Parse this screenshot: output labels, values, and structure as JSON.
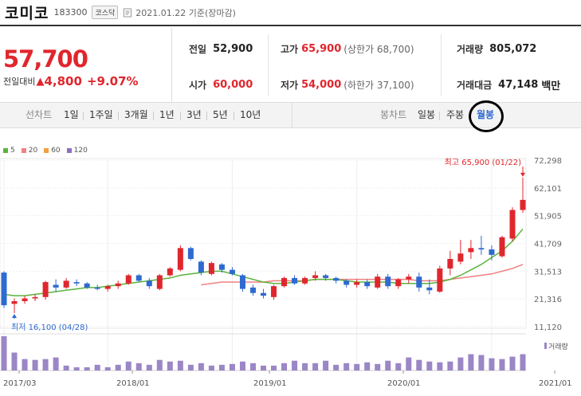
{
  "header": {
    "name": "코미코",
    "code": "183300",
    "market": "코스닥",
    "date": "2021.01.22 기준(장마감)"
  },
  "price": {
    "current": "57,700",
    "diff_label": "전일대비",
    "diff_arrow": "▲",
    "diff_value": "4,800",
    "diff_pct": "+9.07%"
  },
  "stats": {
    "prev_label": "전일",
    "prev_value": "52,900",
    "open_label": "시가",
    "open_value": "60,000",
    "high_label": "고가",
    "high_value": "65,900",
    "high_sub": "(상한가 68,700)",
    "low_label": "저가",
    "low_value": "54,000",
    "low_sub": "(하한가 37,100)",
    "volume_label": "거래량",
    "volume_value": "805,072",
    "amount_label": "거래대금",
    "amount_value": "47,148",
    "amount_unit": "백만"
  },
  "tabs": {
    "line_label": "선차트",
    "line_periods": [
      "1일",
      "1주일",
      "3개월",
      "1년",
      "3년",
      "5년",
      "10년"
    ],
    "candle_label": "봉차트",
    "candle_periods": [
      "일봉",
      "주봉",
      "월봉"
    ],
    "active": "월봉"
  },
  "colors": {
    "up": "#e0262d",
    "down": "#2e6ad0",
    "ma5": "#5ab43c",
    "ma20": "#f08080",
    "ma60": "#f0a040",
    "ma120": "#8e6fc0",
    "volume": "#9b86c6"
  },
  "chart_data": {
    "type": "candlestick",
    "legend": [
      "5",
      "20",
      "60",
      "120"
    ],
    "y_ticks": [
      "72,298",
      "62,101",
      "51,905",
      "41,709",
      "31,513",
      "21,316",
      "11,120"
    ],
    "ylim": [
      11120,
      72298
    ],
    "x_ticks": [
      "2017/03",
      "2018/01",
      "2019/01",
      "2020/01",
      "2021/01"
    ],
    "high_annotation": "최고 65,900 (01/22)",
    "low_annotation": "최저 16,100 (04/28)",
    "volume_label": "거래량",
    "candles": [
      {
        "o": 31000,
        "h": 31500,
        "l": 18000,
        "c": 19000
      },
      {
        "o": 19500,
        "h": 21500,
        "l": 16100,
        "c": 20500
      },
      {
        "o": 20500,
        "h": 22500,
        "l": 19500,
        "c": 21500
      },
      {
        "o": 21500,
        "h": 23000,
        "l": 20500,
        "c": 22000
      },
      {
        "o": 22000,
        "h": 28000,
        "l": 21000,
        "c": 27500
      },
      {
        "o": 26500,
        "h": 28500,
        "l": 24000,
        "c": 25500
      },
      {
        "o": 25500,
        "h": 29000,
        "l": 25000,
        "c": 28000
      },
      {
        "o": 27500,
        "h": 28500,
        "l": 26000,
        "c": 27000
      },
      {
        "o": 27000,
        "h": 27500,
        "l": 25000,
        "c": 25500
      },
      {
        "o": 25500,
        "h": 26500,
        "l": 24500,
        "c": 25000
      },
      {
        "o": 25000,
        "h": 26500,
        "l": 24000,
        "c": 26000
      },
      {
        "o": 26000,
        "h": 28000,
        "l": 25000,
        "c": 27000
      },
      {
        "o": 27000,
        "h": 30500,
        "l": 26500,
        "c": 30000
      },
      {
        "o": 30000,
        "h": 30500,
        "l": 27500,
        "c": 28000
      },
      {
        "o": 28000,
        "h": 29000,
        "l": 25000,
        "c": 26000
      },
      {
        "o": 25000,
        "h": 30500,
        "l": 24500,
        "c": 30000
      },
      {
        "o": 30000,
        "h": 33000,
        "l": 29500,
        "c": 32500
      },
      {
        "o": 32000,
        "h": 41000,
        "l": 31500,
        "c": 40000
      },
      {
        "o": 40000,
        "h": 40500,
        "l": 35500,
        "c": 36000
      },
      {
        "o": 35000,
        "h": 35500,
        "l": 30000,
        "c": 31000
      },
      {
        "o": 30500,
        "h": 35000,
        "l": 30000,
        "c": 34500
      },
      {
        "o": 34000,
        "h": 34500,
        "l": 31000,
        "c": 32000
      },
      {
        "o": 32000,
        "h": 33000,
        "l": 30000,
        "c": 30500
      },
      {
        "o": 30000,
        "h": 30500,
        "l": 24000,
        "c": 25000
      },
      {
        "o": 25500,
        "h": 26500,
        "l": 22500,
        "c": 23500
      },
      {
        "o": 23500,
        "h": 25000,
        "l": 21500,
        "c": 22500
      },
      {
        "o": 22000,
        "h": 26500,
        "l": 21000,
        "c": 26000
      },
      {
        "o": 26000,
        "h": 29500,
        "l": 25500,
        "c": 29000
      },
      {
        "o": 29000,
        "h": 30000,
        "l": 26500,
        "c": 27000
      },
      {
        "o": 27000,
        "h": 29500,
        "l": 26500,
        "c": 29000
      },
      {
        "o": 29000,
        "h": 31500,
        "l": 28000,
        "c": 30000
      },
      {
        "o": 30000,
        "h": 30500,
        "l": 28000,
        "c": 29000
      },
      {
        "o": 29000,
        "h": 29500,
        "l": 27000,
        "c": 28000
      },
      {
        "o": 28000,
        "h": 28500,
        "l": 25500,
        "c": 26500
      },
      {
        "o": 26500,
        "h": 28500,
        "l": 25500,
        "c": 27500
      },
      {
        "o": 27500,
        "h": 28500,
        "l": 25000,
        "c": 26000
      },
      {
        "o": 25500,
        "h": 30500,
        "l": 25000,
        "c": 29500
      },
      {
        "o": 29500,
        "h": 30500,
        "l": 25000,
        "c": 26000
      },
      {
        "o": 26000,
        "h": 29000,
        "l": 25000,
        "c": 28500
      },
      {
        "o": 28500,
        "h": 30500,
        "l": 27000,
        "c": 29500
      },
      {
        "o": 29500,
        "h": 31000,
        "l": 24000,
        "c": 25500
      },
      {
        "o": 25500,
        "h": 28500,
        "l": 23000,
        "c": 24500
      },
      {
        "o": 24000,
        "h": 33500,
        "l": 23500,
        "c": 32500
      },
      {
        "o": 32500,
        "h": 39000,
        "l": 30000,
        "c": 36000
      },
      {
        "o": 35000,
        "h": 43000,
        "l": 34000,
        "c": 38000
      },
      {
        "o": 38500,
        "h": 43000,
        "l": 36000,
        "c": 40000
      },
      {
        "o": 40000,
        "h": 44500,
        "l": 37500,
        "c": 39500
      },
      {
        "o": 39500,
        "h": 41000,
        "l": 35500,
        "c": 37500
      },
      {
        "o": 37000,
        "h": 44500,
        "l": 36500,
        "c": 44000
      },
      {
        "o": 43500,
        "h": 55000,
        "l": 42500,
        "c": 54000
      },
      {
        "o": 54000,
        "h": 65900,
        "l": 52900,
        "c": 57700
      }
    ],
    "ma5": [
      23000,
      22500,
      22500,
      23000,
      23500,
      24000,
      24500,
      25000,
      25500,
      25500,
      26000,
      26500,
      27000,
      27500,
      28000,
      28500,
      29000,
      30000,
      30500,
      31000,
      31500,
      31500,
      30500,
      29500,
      28500,
      27500,
      27000,
      27000,
      27500,
      28000,
      28500,
      28500,
      28500,
      28000,
      27500,
      27500,
      27500,
      27500,
      27000,
      27000,
      27000,
      27000,
      27500,
      28500,
      30000,
      32000,
      34000,
      36500,
      39000,
      42500,
      47000
    ],
    "ma20": [
      null,
      null,
      null,
      null,
      null,
      null,
      null,
      null,
      null,
      null,
      null,
      null,
      null,
      null,
      null,
      null,
      null,
      null,
      null,
      26500,
      27000,
      27500,
      27500,
      27500,
      27500,
      27500,
      28000,
      28000,
      28000,
      28000,
      28500,
      28500,
      28500,
      28500,
      28500,
      28500,
      28500,
      28500,
      28500,
      28500,
      28000,
      28000,
      28000,
      28500,
      29000,
      29500,
      30000,
      30500,
      31500,
      32500,
      34000
    ],
    "volume": [
      84,
      44,
      28,
      26,
      28,
      32,
      12,
      8,
      8,
      14,
      8,
      14,
      22,
      18,
      14,
      26,
      22,
      24,
      14,
      18,
      12,
      14,
      16,
      22,
      18,
      12,
      12,
      18,
      24,
      18,
      18,
      24,
      14,
      18,
      16,
      20,
      16,
      24,
      18,
      32,
      26,
      22,
      20,
      22,
      32,
      40,
      38,
      30,
      28,
      34,
      40
    ]
  }
}
